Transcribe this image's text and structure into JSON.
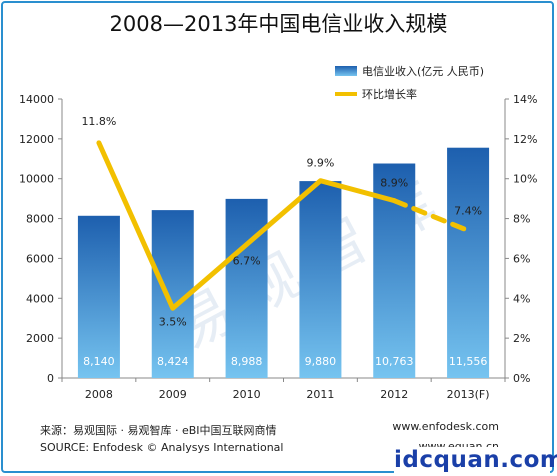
{
  "title": "2008—2013年中国电信业收入规模",
  "watermark": "易观智库",
  "legend": {
    "bar_label": "电信业收入(亿元 人民币)",
    "line_label": "环比增长率"
  },
  "colors": {
    "bar_top": "#1d5fae",
    "bar_bottom": "#76c4f0",
    "line": "#f2c000",
    "border": "#2a8fcf",
    "brand": "#1a3fa8"
  },
  "footer": {
    "source_cn": "来源：易观国际 · 易观智库 · eBI中国互联网商情",
    "source_en": "SOURCE: Enfodesk © Analysys International",
    "url1": "www.enfodesk.com",
    "url2": "www.eguan.cn",
    "brand": "idcquan.com"
  },
  "chart_data": {
    "type": "bar",
    "categories": [
      "2008",
      "2009",
      "2010",
      "2011",
      "2012",
      "2013(F)"
    ],
    "series": [
      {
        "name": "电信业收入(亿元 人民币)",
        "type": "bar",
        "axis": "left",
        "values": [
          8140,
          8424,
          8988,
          9880,
          10763,
          11556
        ],
        "labels": [
          "8,140",
          "8,424",
          "8,988",
          "9,880",
          "10,763",
          "11,556"
        ]
      },
      {
        "name": "环比增长率",
        "type": "line",
        "axis": "right",
        "values": [
          11.8,
          3.5,
          6.7,
          9.9,
          8.9,
          7.4
        ],
        "labels": [
          "11.8%",
          "3.5%",
          "6.7%",
          "9.9%",
          "8.9%",
          "7.4%"
        ],
        "dashed_last_segment": true
      }
    ],
    "y_left": {
      "range": [
        0,
        14000
      ],
      "ticks": [
        "0",
        "2000",
        "4000",
        "6000",
        "8000",
        "10000",
        "12000",
        "14000"
      ]
    },
    "y_right": {
      "range": [
        0,
        14
      ],
      "ticks": [
        "0%",
        "2%",
        "4%",
        "6%",
        "8%",
        "10%",
        "12%",
        "14%"
      ]
    },
    "grid": false,
    "legend_position": "top-right"
  }
}
